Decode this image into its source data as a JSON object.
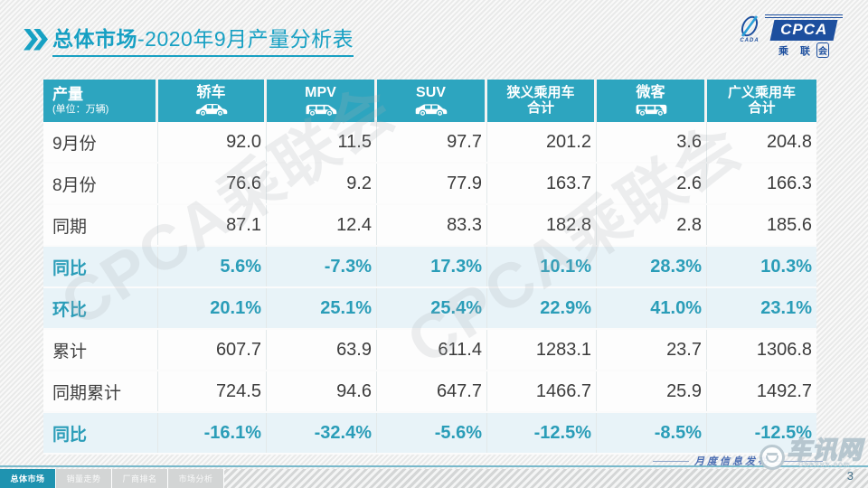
{
  "title": {
    "section": "总体市场",
    "rest": "-2020年9月产量分析表"
  },
  "logo": {
    "cpca": "CPCA",
    "sub_cn": "乘 联",
    "sub_cn_boxed": "会",
    "cada": "CADA"
  },
  "watermark": {
    "text": "CPCA乘联会"
  },
  "table": {
    "header": {
      "label": "产量",
      "unit": "(单位：万辆)",
      "columns": [
        {
          "label": "轿车",
          "label2": "",
          "icon": "sedan-icon"
        },
        {
          "label": "MPV",
          "label2": "",
          "icon": "mpv-icon"
        },
        {
          "label": "SUV",
          "label2": "",
          "icon": "suv-icon"
        },
        {
          "label": "狭义乘用车",
          "label2": "合计",
          "icon": ""
        },
        {
          "label": "微客",
          "label2": "",
          "icon": "van-icon"
        },
        {
          "label": "广义乘用车",
          "label2": "合计",
          "icon": ""
        }
      ]
    },
    "rows": [
      {
        "label": "9月份",
        "type": "normal",
        "values": [
          "92.0",
          "11.5",
          "97.7",
          "201.2",
          "3.6",
          "204.8"
        ]
      },
      {
        "label": "8月份",
        "type": "normal",
        "values": [
          "76.6",
          "9.2",
          "77.9",
          "163.7",
          "2.6",
          "166.3"
        ]
      },
      {
        "label": "同期",
        "type": "normal",
        "values": [
          "87.1",
          "12.4",
          "83.3",
          "182.8",
          "2.8",
          "185.6"
        ]
      },
      {
        "label": "同比",
        "type": "highlight",
        "values": [
          "5.6%",
          "-7.3%",
          "17.3%",
          "10.1%",
          "28.3%",
          "10.3%"
        ]
      },
      {
        "label": "环比",
        "type": "highlight",
        "values": [
          "20.1%",
          "25.1%",
          "25.4%",
          "22.9%",
          "41.0%",
          "23.1%"
        ]
      },
      {
        "label": "累计",
        "type": "normal",
        "values": [
          "607.7",
          "63.9",
          "611.4",
          "1283.1",
          "23.7",
          "1306.8"
        ]
      },
      {
        "label": "同期累计",
        "type": "normal",
        "values": [
          "724.5",
          "94.6",
          "647.7",
          "1466.7",
          "25.9",
          "1492.7"
        ]
      },
      {
        "label": "同比",
        "type": "highlight",
        "values": [
          "-16.1%",
          "-32.4%",
          "-5.6%",
          "-12.5%",
          "-8.5%",
          "-12.5%"
        ]
      }
    ]
  },
  "footer": {
    "tabs": [
      {
        "label": "总体市场",
        "active": true
      },
      {
        "label": "销量走势",
        "active": false
      },
      {
        "label": "厂商排名",
        "active": false
      },
      {
        "label": "市场分析",
        "active": false
      }
    ],
    "release_note": "月度信息发布",
    "page": "3",
    "chexun": {
      "name": "车讯网",
      "domain": "CheXun.com"
    }
  },
  "colors": {
    "accent_teal": "#2da5bf",
    "highlight_row_bg": "#e8f3f8",
    "highlight_text": "#2a9db8",
    "title_teal": "#16a0c3",
    "logo_navy": "#1d4f9e",
    "active_tab": "#1f93b0"
  }
}
